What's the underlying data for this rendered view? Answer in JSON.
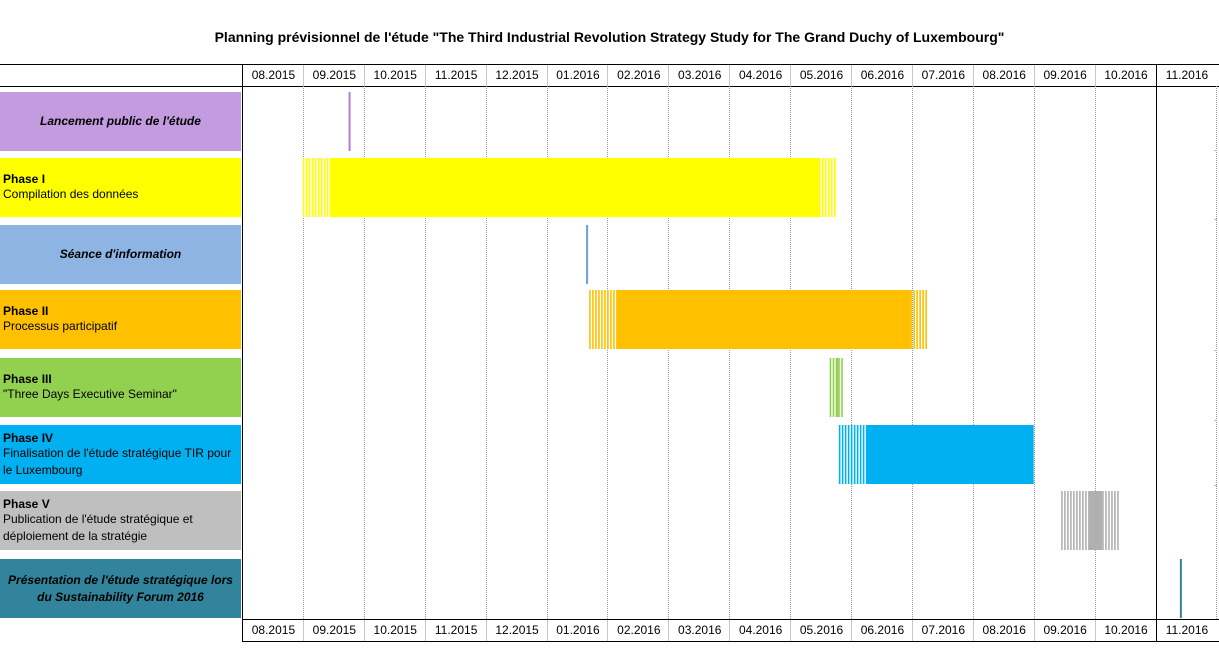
{
  "title": "Planning prévisionnel de l'étude \"The Third Industrial Revolution Strategy Study for The Grand Duchy of Luxembourg\"",
  "chart_data": {
    "type": "gantt",
    "months": [
      "08.2015",
      "09.2015",
      "10.2015",
      "11.2015",
      "12.2015",
      "01.2016",
      "02.2016",
      "03.2016",
      "04.2016",
      "05.2016",
      "06.2016",
      "07.2016",
      "08.2016",
      "09.2016",
      "10.2016",
      "11.2016"
    ],
    "rows": [
      {
        "phase": "",
        "label": "Lancement public de l'étude",
        "color": "#c39bdf",
        "bar_color": "#b27bd6",
        "style": "milestone",
        "start_month": 1.75
      },
      {
        "phase": "Phase I",
        "label": "Compilation des données",
        "color": "#ffff00",
        "bar_color": "#ffff00",
        "style": "bar",
        "start_month": 1.0,
        "end_month": 9.75,
        "fade_start": true,
        "fade_end": true
      },
      {
        "phase": "",
        "label": "Séance d'information",
        "color": "#8eb4e3",
        "bar_color": "#6f9ed8",
        "style": "milestone",
        "start_month": 5.65
      },
      {
        "phase": "Phase II",
        "label": "Processus participatif",
        "color": "#ffc000",
        "bar_color": "#ffc000",
        "style": "bar",
        "start_month": 5.7,
        "end_month": 11.25,
        "fade_start": true,
        "fade_end": true
      },
      {
        "phase": "Phase III",
        "label": "\"Three Days Executive Seminar\"",
        "color": "#92d050",
        "bar_color": "#92d050",
        "style": "bar",
        "start_month": 9.65,
        "end_month": 9.85,
        "fade_start": true,
        "fade_end": true
      },
      {
        "phase": "Phase IV",
        "label": "Finalisation de l'étude stratégique TIR pour le Luxembourg",
        "color": "#00b0f0",
        "bar_color": "#00b0f0",
        "style": "bar",
        "start_month": 9.8,
        "end_month": 13.0,
        "fade_start": true,
        "fade_end": false
      },
      {
        "phase": "Phase V",
        "label": "Publication de l'étude stratégique et déploiement de la stratégie",
        "color": "#bfbfbf",
        "bar_color": "#b0b0b0",
        "style": "bar",
        "start_month": 13.45,
        "end_month": 14.4,
        "fade_start": true,
        "fade_end": true
      },
      {
        "phase": "",
        "label": "Présentation de l'étude stratégique lors du Sustainability Forum 2016",
        "color": "#31849b",
        "bar_color": "#31849b",
        "style": "milestone",
        "start_month": 15.4
      }
    ]
  }
}
